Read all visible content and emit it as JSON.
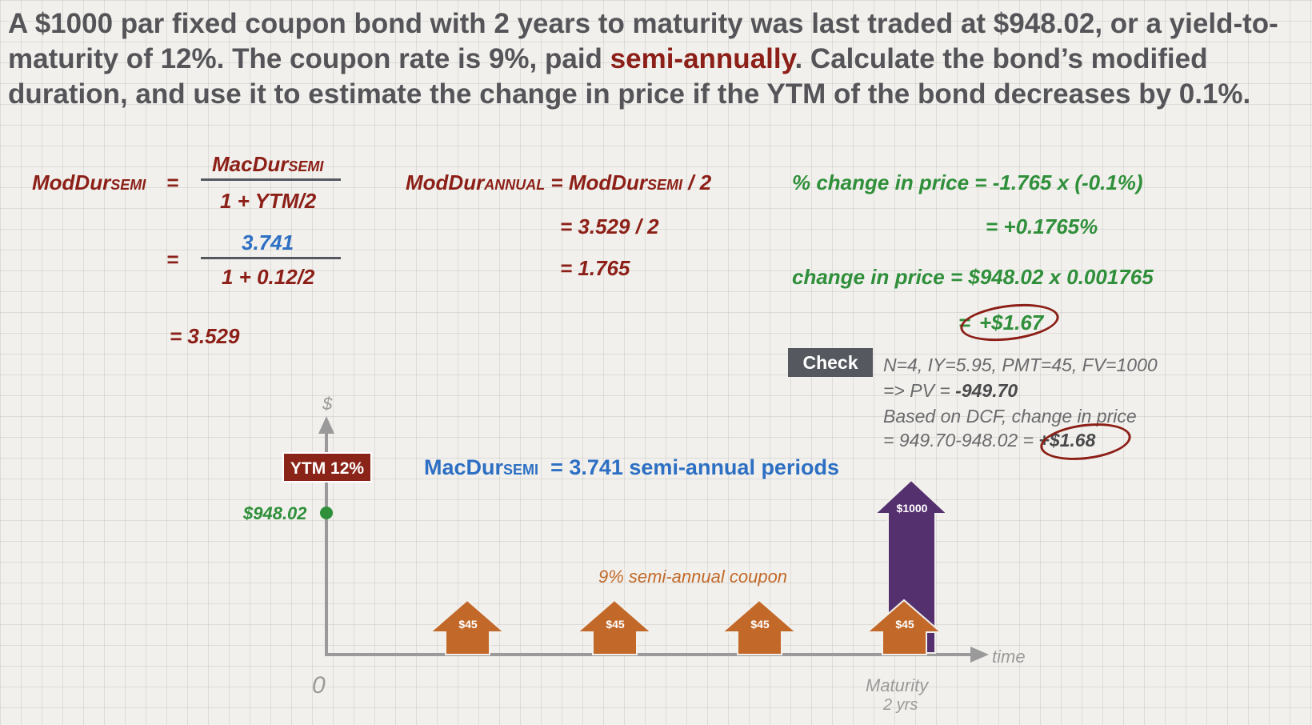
{
  "question": {
    "part1": "A $1000 par fixed coupon bond with 2 years to maturity was last traded at $948.02, or a yield-to-maturity of 12%.  The coupon rate is 9%, paid ",
    "highlight": "semi-annually",
    "part2": ".  Calculate the bond’s modified duration, and use it to estimate the change in price if the YTM of the bond decreases by 0.1%."
  },
  "moddur_semi": {
    "label": "ModDur",
    "label_sub": "SEMI",
    "eq": "=",
    "num_label": "MacDur",
    "num_sub": "SEMI",
    "den": "1 + YTM/2",
    "eq2": "=",
    "num_value": "3.741",
    "den_value": "1 + 0.12/2",
    "result": "= 3.529"
  },
  "moddur_annual": {
    "label": "ModDur",
    "label_sub": "ANNUAL",
    "rhs_a": " = ModDur",
    "rhs_sub": "SEMI",
    "rhs_b": " / 2",
    "step1": "=  3.529 / 2",
    "step2": "=  1.765"
  },
  "price_change": {
    "pct_line": "% change in price = -1.765 x (-0.1%)",
    "pct_result": "=  +0.1765%",
    "change_line": "change in price = $948.02 x 0.001765",
    "result_eq": "=",
    "result_value": "+$1.67"
  },
  "check": {
    "badge": "Check",
    "line1": "N=4, IY=5.95, PMT=45, FV=1000",
    "line2_a": "=> PV = ",
    "line2_b": "-949.70",
    "line3": "Based on DCF, change in price",
    "line4_a": "= 949.70-948.02 = ",
    "line4_b": "+$1.68"
  },
  "timeline": {
    "y_axis_label": "$",
    "x_axis_label": "time",
    "origin_label": "0",
    "maturity_label": "Maturity",
    "maturity_sub": "2 yrs",
    "ytm_badge": "YTM 12%",
    "price_label": "$948.02",
    "macdur_label": "MacDur",
    "macdur_sub": "SEMI",
    "macdur_value": "= 3.741 semi-annual periods",
    "coupon_note": "9% semi-annual coupon",
    "coupons": [
      "$45",
      "$45",
      "$45",
      "$45"
    ],
    "principal": "$1000"
  },
  "colors": {
    "red": "#8c1f17",
    "blue": "#2d6fc3",
    "green": "#2f8f3a",
    "coupon_arrow": "#c2692a",
    "principal_arrow": "#55306f",
    "axis": "#9a9a9a"
  }
}
